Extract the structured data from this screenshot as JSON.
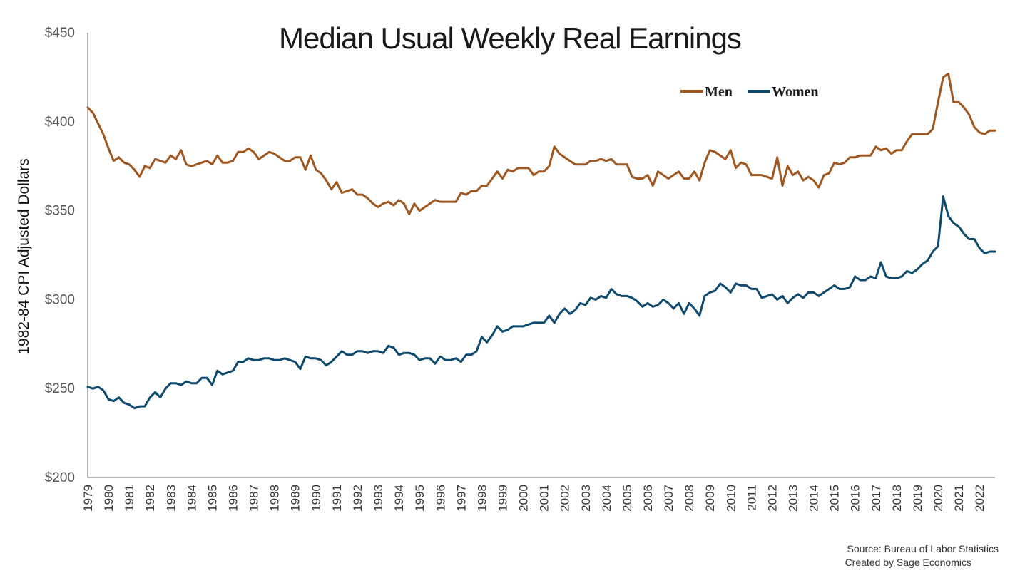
{
  "chart_data": {
    "type": "line",
    "title": "Median Usual Weekly Real Earnings",
    "ylabel": "1982-84 CPI Adjusted Dollars",
    "xlabel": "",
    "ylim": [
      200,
      450
    ],
    "xlim": [
      1979.0,
      2022.75
    ],
    "yticks": [
      {
        "value": 200,
        "label": "$200"
      },
      {
        "value": 250,
        "label": "$250"
      },
      {
        "value": 300,
        "label": "$300"
      },
      {
        "value": 350,
        "label": "$350"
      },
      {
        "value": 400,
        "label": "$400"
      },
      {
        "value": 450,
        "label": "$450"
      }
    ],
    "xticks": [
      "1979",
      "1980",
      "1981",
      "1982",
      "1983",
      "1984",
      "1985",
      "1986",
      "1987",
      "1988",
      "1989",
      "1990",
      "1991",
      "1992",
      "1993",
      "1994",
      "1995",
      "1996",
      "1997",
      "1998",
      "1999",
      "2000",
      "2001",
      "2002",
      "2003",
      "2004",
      "2005",
      "2006",
      "2007",
      "2008",
      "2009",
      "2010",
      "2011",
      "2012",
      "2013",
      "2014",
      "2015",
      "2016",
      "2017",
      "2018",
      "2019",
      "2020",
      "2021",
      "2022"
    ],
    "grid": false,
    "legend_position": "top-right",
    "series": [
      {
        "name": "Men",
        "color": "#a0561f",
        "x": [
          1979.0,
          1979.25,
          1979.5,
          1979.75,
          1980.0,
          1980.25,
          1980.5,
          1980.75,
          1981.0,
          1981.25,
          1981.5,
          1981.75,
          1982.0,
          1982.25,
          1982.5,
          1982.75,
          1983.0,
          1983.25,
          1983.5,
          1983.75,
          1984.0,
          1984.25,
          1984.5,
          1984.75,
          1985.0,
          1985.25,
          1985.5,
          1985.75,
          1986.0,
          1986.25,
          1986.5,
          1986.75,
          1987.0,
          1987.25,
          1987.5,
          1987.75,
          1988.0,
          1988.25,
          1988.5,
          1988.75,
          1989.0,
          1989.25,
          1989.5,
          1989.75,
          1990.0,
          1990.25,
          1990.5,
          1990.75,
          1991.0,
          1991.25,
          1991.5,
          1991.75,
          1992.0,
          1992.25,
          1992.5,
          1992.75,
          1993.0,
          1993.25,
          1993.5,
          1993.75,
          1994.0,
          1994.25,
          1994.5,
          1994.75,
          1995.0,
          1995.25,
          1995.5,
          1995.75,
          1996.0,
          1996.25,
          1996.5,
          1996.75,
          1997.0,
          1997.25,
          1997.5,
          1997.75,
          1998.0,
          1998.25,
          1998.5,
          1998.75,
          1999.0,
          1999.25,
          1999.5,
          1999.75,
          2000.0,
          2000.25,
          2000.5,
          2000.75,
          2001.0,
          2001.25,
          2001.5,
          2001.75,
          2002.0,
          2002.25,
          2002.5,
          2002.75,
          2003.0,
          2003.25,
          2003.5,
          2003.75,
          2004.0,
          2004.25,
          2004.5,
          2004.75,
          2005.0,
          2005.25,
          2005.5,
          2005.75,
          2006.0,
          2006.25,
          2006.5,
          2006.75,
          2007.0,
          2007.25,
          2007.5,
          2007.75,
          2008.0,
          2008.25,
          2008.5,
          2008.75,
          2009.0,
          2009.25,
          2009.5,
          2009.75,
          2010.0,
          2010.25,
          2010.5,
          2010.75,
          2011.0,
          2011.25,
          2011.5,
          2011.75,
          2012.0,
          2012.25,
          2012.5,
          2012.75,
          2013.0,
          2013.25,
          2013.5,
          2013.75,
          2014.0,
          2014.25,
          2014.5,
          2014.75,
          2015.0,
          2015.25,
          2015.5,
          2015.75,
          2016.0,
          2016.25,
          2016.5,
          2016.75,
          2017.0,
          2017.25,
          2017.5,
          2017.75,
          2018.0,
          2018.25,
          2018.5,
          2018.75,
          2019.0,
          2019.25,
          2019.5,
          2019.75,
          2020.0,
          2020.25,
          2020.5,
          2020.75,
          2021.0,
          2021.25,
          2021.5,
          2021.75,
          2022.0,
          2022.25,
          2022.5,
          2022.75
        ],
        "values": [
          408,
          405,
          399,
          393,
          385,
          378,
          380,
          377,
          376,
          373,
          369,
          375,
          374,
          379,
          378,
          377,
          381,
          379,
          384,
          376,
          375,
          376,
          377,
          378,
          376,
          381,
          377,
          377,
          378,
          383,
          383,
          385,
          383,
          379,
          381,
          383,
          382,
          380,
          378,
          378,
          380,
          380,
          373,
          381,
          373,
          371,
          367,
          362,
          366,
          360,
          361,
          362,
          359,
          359,
          357,
          354,
          352,
          354,
          355,
          353,
          356,
          354,
          348,
          354,
          350,
          352,
          354,
          356,
          355,
          355,
          355,
          355,
          360,
          359,
          361,
          361,
          364,
          364,
          368,
          372,
          368,
          373,
          372,
          374,
          374,
          374,
          370,
          372,
          372,
          375,
          386,
          382,
          380,
          378,
          376,
          376,
          376,
          378,
          378,
          379,
          378,
          379,
          376,
          376,
          376,
          369,
          368,
          368,
          370,
          364,
          372,
          370,
          368,
          370,
          372,
          368,
          368,
          372,
          367,
          377,
          384,
          383,
          381,
          379,
          384,
          374,
          377,
          376,
          370,
          370,
          370,
          369,
          368,
          380,
          364,
          375,
          370,
          372,
          367,
          369,
          367,
          363,
          370,
          371,
          377,
          376,
          377,
          380,
          380,
          381,
          381,
          381,
          386,
          384,
          385,
          382,
          384,
          384,
          389,
          393,
          393,
          393,
          393,
          396,
          411,
          425,
          427,
          411,
          411,
          408,
          404,
          397,
          394,
          393,
          395,
          395
        ]
      },
      {
        "name": "Women",
        "color": "#0e4a6e",
        "x": [
          1979.0,
          1979.25,
          1979.5,
          1979.75,
          1980.0,
          1980.25,
          1980.5,
          1980.75,
          1981.0,
          1981.25,
          1981.5,
          1981.75,
          1982.0,
          1982.25,
          1982.5,
          1982.75,
          1983.0,
          1983.25,
          1983.5,
          1983.75,
          1984.0,
          1984.25,
          1984.5,
          1984.75,
          1985.0,
          1985.25,
          1985.5,
          1985.75,
          1986.0,
          1986.25,
          1986.5,
          1986.75,
          1987.0,
          1987.25,
          1987.5,
          1987.75,
          1988.0,
          1988.25,
          1988.5,
          1988.75,
          1989.0,
          1989.25,
          1989.5,
          1989.75,
          1990.0,
          1990.25,
          1990.5,
          1990.75,
          1991.0,
          1991.25,
          1991.5,
          1991.75,
          1992.0,
          1992.25,
          1992.5,
          1992.75,
          1993.0,
          1993.25,
          1993.5,
          1993.75,
          1994.0,
          1994.25,
          1994.5,
          1994.75,
          1995.0,
          1995.25,
          1995.5,
          1995.75,
          1996.0,
          1996.25,
          1996.5,
          1996.75,
          1997.0,
          1997.25,
          1997.5,
          1997.75,
          1998.0,
          1998.25,
          1998.5,
          1998.75,
          1999.0,
          1999.25,
          1999.5,
          1999.75,
          2000.0,
          2000.25,
          2000.5,
          2000.75,
          2001.0,
          2001.25,
          2001.5,
          2001.75,
          2002.0,
          2002.25,
          2002.5,
          2002.75,
          2003.0,
          2003.25,
          2003.5,
          2003.75,
          2004.0,
          2004.25,
          2004.5,
          2004.75,
          2005.0,
          2005.25,
          2005.5,
          2005.75,
          2006.0,
          2006.25,
          2006.5,
          2006.75,
          2007.0,
          2007.25,
          2007.5,
          2007.75,
          2008.0,
          2008.25,
          2008.5,
          2008.75,
          2009.0,
          2009.25,
          2009.5,
          2009.75,
          2010.0,
          2010.25,
          2010.5,
          2010.75,
          2011.0,
          2011.25,
          2011.5,
          2011.75,
          2012.0,
          2012.25,
          2012.5,
          2012.75,
          2013.0,
          2013.25,
          2013.5,
          2013.75,
          2014.0,
          2014.25,
          2014.5,
          2014.75,
          2015.0,
          2015.25,
          2015.5,
          2015.75,
          2016.0,
          2016.25,
          2016.5,
          2016.75,
          2017.0,
          2017.25,
          2017.5,
          2017.75,
          2018.0,
          2018.25,
          2018.5,
          2018.75,
          2019.0,
          2019.25,
          2019.5,
          2019.75,
          2020.0,
          2020.25,
          2020.5,
          2020.75,
          2021.0,
          2021.25,
          2021.5,
          2021.75,
          2022.0,
          2022.25,
          2022.5,
          2022.75
        ],
        "values": [
          251,
          250,
          251,
          249,
          244,
          243,
          245,
          242,
          241,
          239,
          240,
          240,
          245,
          248,
          245,
          250,
          253,
          253,
          252,
          254,
          253,
          253,
          256,
          256,
          252,
          260,
          258,
          259,
          260,
          265,
          265,
          267,
          266,
          266,
          267,
          267,
          266,
          266,
          267,
          266,
          265,
          261,
          268,
          267,
          267,
          266,
          263,
          265,
          268,
          271,
          269,
          269,
          271,
          271,
          270,
          271,
          271,
          270,
          274,
          273,
          269,
          270,
          270,
          269,
          266,
          267,
          267,
          264,
          268,
          266,
          266,
          267,
          265,
          269,
          269,
          271,
          279,
          276,
          280,
          285,
          282,
          283,
          285,
          285,
          285,
          286,
          287,
          287,
          287,
          291,
          287,
          292,
          295,
          292,
          294,
          298,
          297,
          301,
          300,
          302,
          301,
          306,
          303,
          302,
          302,
          301,
          299,
          296,
          298,
          296,
          297,
          300,
          298,
          295,
          298,
          292,
          298,
          295,
          291,
          302,
          304,
          305,
          309,
          307,
          304,
          309,
          308,
          308,
          306,
          306,
          301,
          302,
          303,
          300,
          302,
          298,
          301,
          303,
          301,
          304,
          304,
          302,
          304,
          306,
          308,
          306,
          306,
          307,
          313,
          311,
          311,
          313,
          312,
          321,
          313,
          312,
          312,
          313,
          316,
          315,
          317,
          320,
          322,
          327,
          330,
          358,
          347,
          343,
          341,
          337,
          334,
          334,
          329,
          326,
          327,
          327
        ]
      }
    ],
    "legend": [
      {
        "label": "Men",
        "color": "#a0561f"
      },
      {
        "label": "Women",
        "color": "#0e4a6e"
      }
    ],
    "source_lines": [
      "Source: Bureau of Labor Statistics",
      "Created by Sage Economics"
    ]
  }
}
